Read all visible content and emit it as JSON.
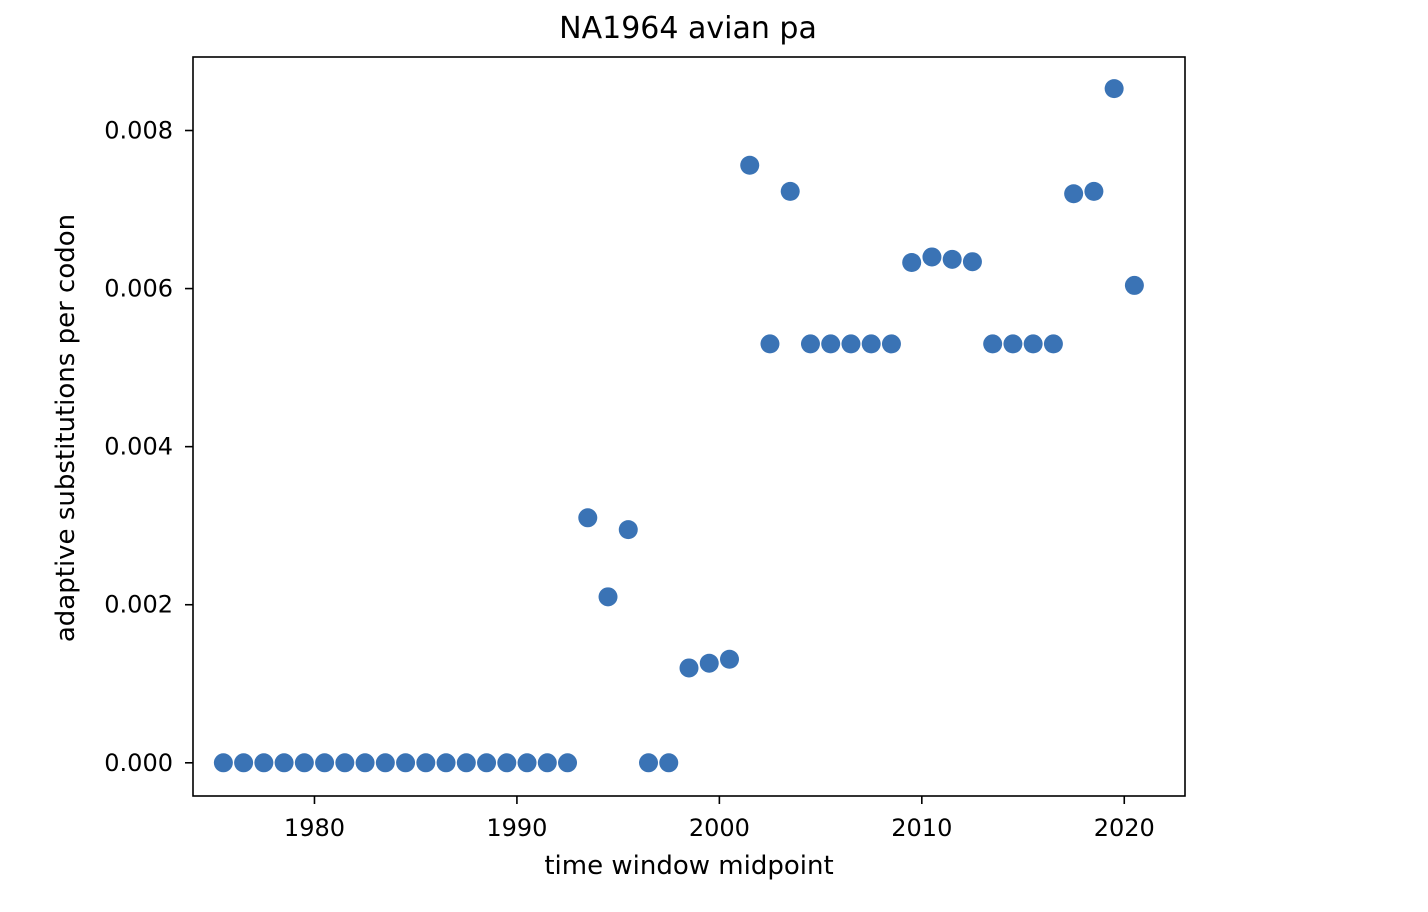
{
  "chart_data": {
    "type": "scatter",
    "title": "NA1964 avian pa",
    "xlabel": "time window midpoint",
    "ylabel": "adaptive substitutions per codon",
    "xlim": [
      1974,
      2023
    ],
    "ylim": [
      -0.00042,
      0.00893
    ],
    "xticks": [
      1980,
      1990,
      2000,
      2010,
      2020
    ],
    "xtick_labels": [
      "1980",
      "1990",
      "2000",
      "2010",
      "2020"
    ],
    "yticks": [
      0,
      0.002,
      0.004,
      0.006,
      0.008
    ],
    "ytick_labels": [
      "0.000",
      "0.002",
      "0.004",
      "0.006",
      "0.008"
    ],
    "grid": false,
    "marker_color": "#3a73b5",
    "series": [
      {
        "x": [
          1975.5,
          1976.5,
          1977.5,
          1978.5,
          1979.5,
          1980.5,
          1981.5,
          1982.5,
          1983.5,
          1984.5,
          1985.5,
          1986.5,
          1987.5,
          1988.5,
          1989.5,
          1990.5,
          1991.5,
          1992.5,
          1993.5,
          1994.5,
          1995.5,
          1996.5,
          1997.5,
          1998.5,
          1999.5,
          2000.5,
          2001.5,
          2002.5,
          2003.5,
          2004.5,
          2005.5,
          2006.5,
          2007.5,
          2008.5,
          2009.5,
          2010.5,
          2011.5,
          2012.5,
          2013.5,
          2014.5,
          2015.5,
          2016.5,
          2017.5,
          2018.5,
          2019.5,
          2020.5
        ],
        "y": [
          0,
          0,
          0,
          0,
          0,
          0,
          0,
          0,
          0,
          0,
          0,
          0,
          0,
          0,
          0,
          0,
          0,
          0,
          0.0031,
          0.0021,
          0.00295,
          0,
          0,
          0.0012,
          0.00126,
          0.00131,
          0.00756,
          0.0053,
          0.00723,
          0.0053,
          0.0053,
          0.0053,
          0.0053,
          0.0053,
          0.00633,
          0.0064,
          0.00637,
          0.00634,
          0.0053,
          0.0053,
          0.0053,
          0.0053,
          0.0072,
          0.00723,
          0.00853,
          0.00604
        ]
      }
    ]
  }
}
